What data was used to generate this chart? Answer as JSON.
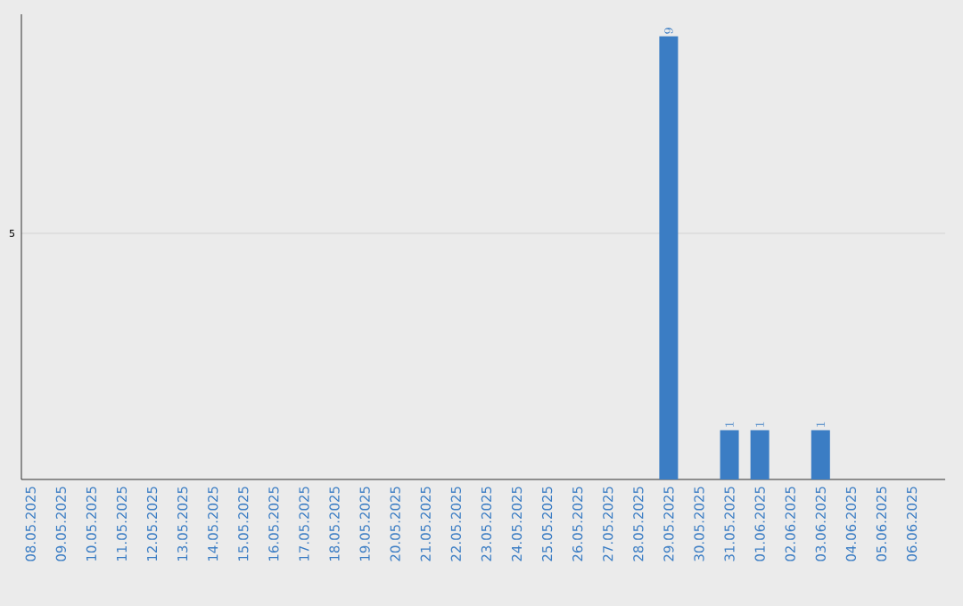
{
  "chart_data": {
    "type": "bar",
    "categories": [
      "08.05.2025",
      "09.05.2025",
      "10.05.2025",
      "11.05.2025",
      "12.05.2025",
      "13.05.2025",
      "14.05.2025",
      "15.05.2025",
      "16.05.2025",
      "17.05.2025",
      "18.05.2025",
      "19.05.2025",
      "20.05.2025",
      "21.05.2025",
      "22.05.2025",
      "23.05.2025",
      "24.05.2025",
      "25.05.2025",
      "26.05.2025",
      "27.05.2025",
      "28.05.2025",
      "29.05.2025",
      "30.05.2025",
      "31.05.2025",
      "01.06.2025",
      "02.06.2025",
      "03.06.2025",
      "04.06.2025",
      "05.06.2025",
      "06.06.2025"
    ],
    "values": [
      null,
      null,
      null,
      null,
      null,
      null,
      null,
      null,
      null,
      null,
      null,
      null,
      null,
      null,
      null,
      null,
      null,
      null,
      null,
      null,
      null,
      9,
      null,
      1,
      1,
      null,
      1,
      null,
      null,
      null
    ],
    "color": "#3b7dc4",
    "ylim": [
      0,
      9.45
    ],
    "yticks": [
      5
    ],
    "grid": "y",
    "data_labels": true
  }
}
